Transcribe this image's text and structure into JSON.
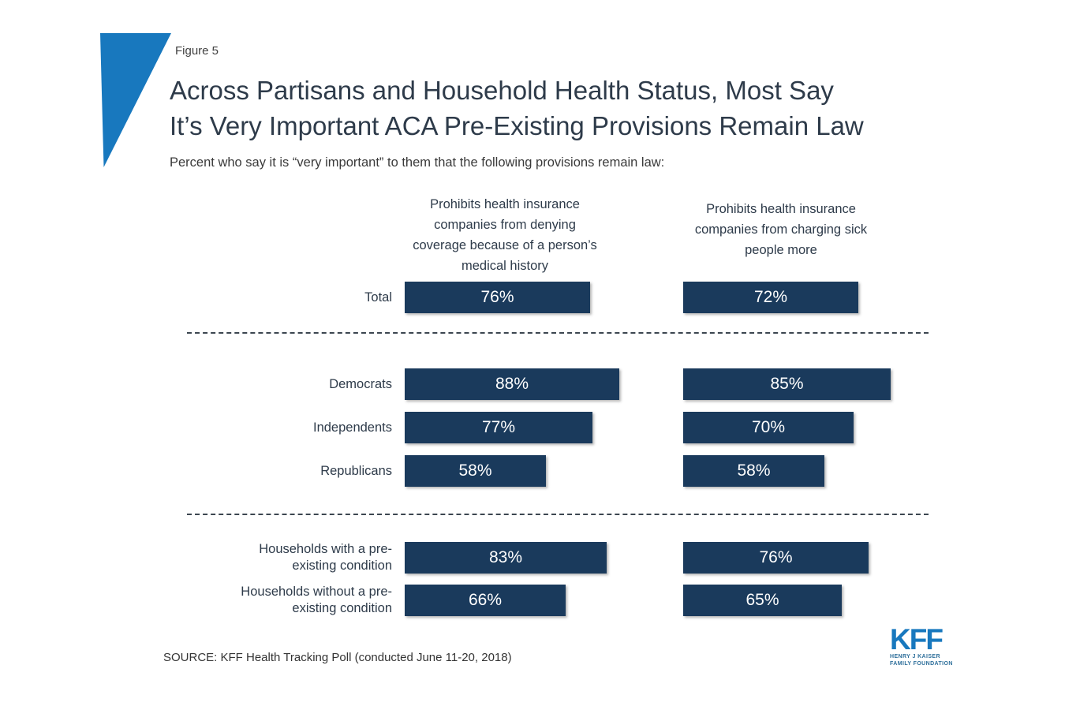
{
  "figure_label": "Figure 5",
  "title": {
    "line1": "Across Partisans and Household Health Status, Most Say",
    "line2": "It’s Very Important ACA Pre-Existing Provisions Remain Law"
  },
  "subtitle": "Percent who say it is “very important” to them that the following provisions remain law:",
  "source": "SOURCE: KFF Health Tracking Poll (conducted June 11-20, 2018)",
  "logo": {
    "name": "KFF",
    "tagline_line1": "HENRY J KAISER",
    "tagline_line2": "FAMILY FOUNDATION"
  },
  "colors": {
    "bar": "#1A3A5C",
    "accent": "#1878BE",
    "title_text": "#2E3B4A",
    "divider": "#3C4650",
    "logo_blue": "#1878BE"
  },
  "chart_data": {
    "type": "bar",
    "orientation": "horizontal",
    "unit": "%",
    "xlim": [
      0,
      100
    ],
    "grid": false,
    "legend_position": "column-headers-top",
    "categories": [
      "Total",
      "Democrats",
      "Independents",
      "Republicans",
      "Households with a pre-\nexisting condition",
      "Households without a pre-\nexisting condition"
    ],
    "section_breaks_after": [
      0,
      3
    ],
    "series": [
      {
        "name": "Prohibits health insurance\ncompanies from denying\ncoverage because of a person’s\nmedical history",
        "values": [
          76,
          88,
          77,
          58,
          83,
          66
        ]
      },
      {
        "name": "Prohibits health insurance\ncompanies from charging sick\npeople more",
        "values": [
          72,
          85,
          70,
          58,
          76,
          65
        ]
      }
    ]
  }
}
